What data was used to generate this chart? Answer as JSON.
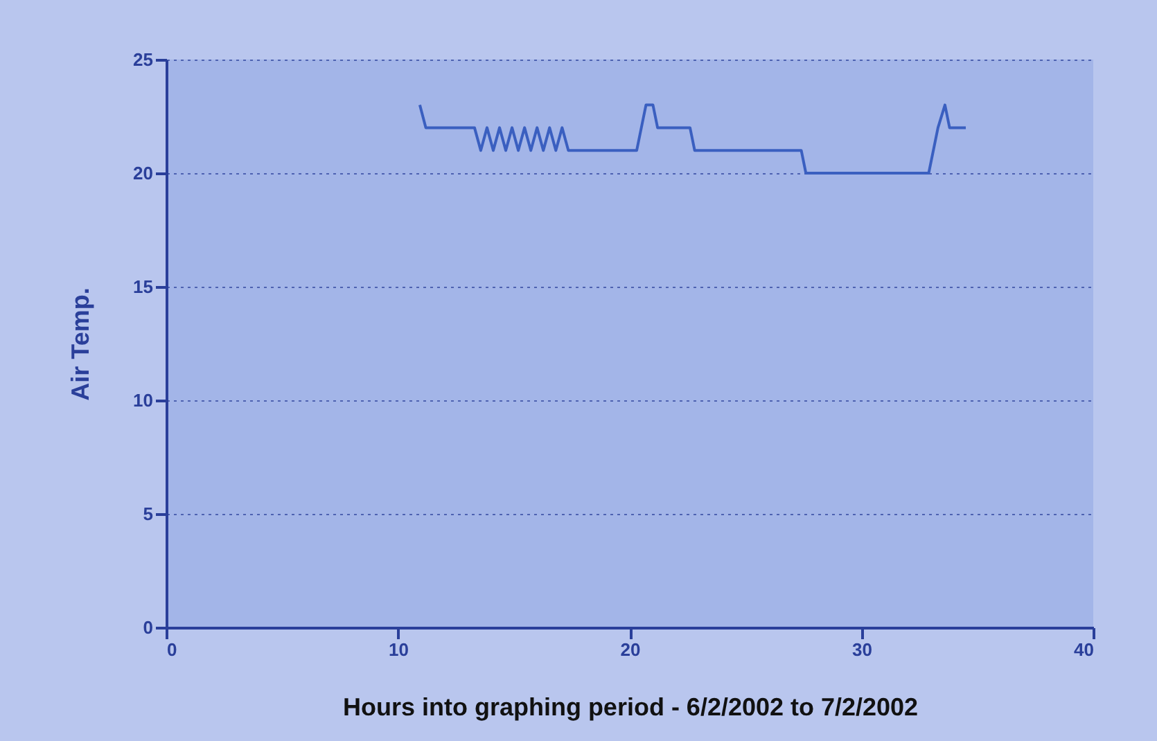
{
  "chart_data": {
    "type": "line",
    "xlabel": "Hours into graphing period - 6/2/2002 to 7/2/2002",
    "ylabel": "Air Temp.",
    "x": [
      10.94,
      11.2,
      13.3,
      13.57,
      13.84,
      14.11,
      14.38,
      14.65,
      14.92,
      15.19,
      15.46,
      15.73,
      16.0,
      16.27,
      16.54,
      16.81,
      17.08,
      17.35,
      17.6,
      20.3,
      20.7,
      21.0,
      21.2,
      22.6,
      22.8,
      27.4,
      27.6,
      32.9,
      33.3,
      33.6,
      33.8,
      34.5
    ],
    "series": [
      {
        "color": "#3a5fc0",
        "values": [
          23,
          22,
          22,
          21,
          22,
          21,
          22,
          21,
          22,
          21,
          22,
          21,
          22,
          21,
          22,
          21,
          22,
          21,
          21,
          21,
          23,
          23,
          22,
          22,
          21,
          21,
          20,
          20,
          22,
          23,
          22,
          22
        ]
      }
    ],
    "xlim": [
      0,
      40
    ],
    "xticks": [
      0,
      10,
      20,
      30,
      40
    ],
    "ylim": [
      0,
      25
    ],
    "yticks": [
      0,
      5,
      10,
      15,
      20,
      25
    ],
    "grid": "y",
    "line_style": "solid",
    "marker": "none"
  }
}
